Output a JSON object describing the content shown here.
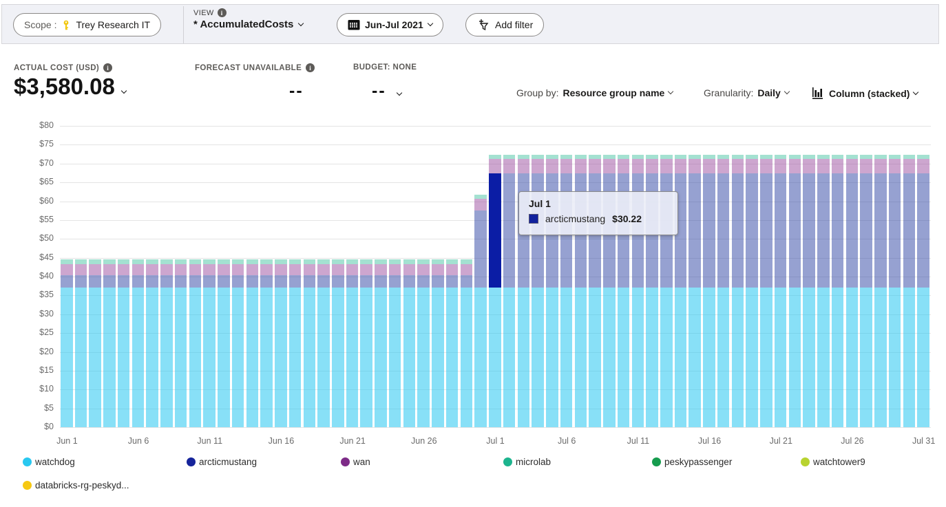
{
  "toolbar": {
    "scope_label": "Scope :",
    "scope_value": "Trey Research IT",
    "view_label": "VIEW",
    "view_value": "* AccumulatedCosts",
    "date_range": "Jun-Jul 2021",
    "add_filter_label": "Add filter"
  },
  "kpis": {
    "actual_cost_label": "ACTUAL COST (USD)",
    "actual_cost_value": "$3,580.08",
    "forecast_label": "FORECAST UNAVAILABLE",
    "forecast_value": "--",
    "budget_label": "BUDGET: NONE",
    "budget_value": "--"
  },
  "controls": {
    "group_by_label": "Group by:",
    "group_by_value": "Resource group name",
    "granularity_label": "Granularity:",
    "granularity_value": "Daily",
    "chart_type_label": "Column (stacked)"
  },
  "tooltip": {
    "title": "Jul 1",
    "series": "arcticmustang",
    "value": "$30.22",
    "swatch_color": "#12229d"
  },
  "legend": [
    {
      "label": "watchdog",
      "color": "#29c8f0"
    },
    {
      "label": "arcticmustang",
      "color": "#16249b"
    },
    {
      "label": "wan",
      "color": "#7d2b87"
    },
    {
      "label": "microlab",
      "color": "#1db48e"
    },
    {
      "label": "peskypassenger",
      "color": "#169c4e"
    },
    {
      "label": "watchtower9",
      "color": "#b8d330"
    },
    {
      "label": "databricks-rg-peskyd...",
      "color": "#f6c812"
    }
  ],
  "chart_data": {
    "type": "bar",
    "stacked": true,
    "title": "Accumulated cost by resource group name, daily",
    "xlabel": "",
    "ylabel": "",
    "ylim": [
      0,
      80
    ],
    "y_tick_step": 5,
    "y_tick_prefix": "$",
    "grid": true,
    "legend_position": "bottom",
    "x_tick_interval": 5,
    "labels": [
      "Jun 1",
      "Jun 2",
      "Jun 3",
      "Jun 4",
      "Jun 5",
      "Jun 6",
      "Jun 7",
      "Jun 8",
      "Jun 9",
      "Jun 10",
      "Jun 11",
      "Jun 12",
      "Jun 13",
      "Jun 14",
      "Jun 15",
      "Jun 16",
      "Jun 17",
      "Jun 18",
      "Jun 19",
      "Jun 20",
      "Jun 21",
      "Jun 22",
      "Jun 23",
      "Jun 24",
      "Jun 25",
      "Jun 26",
      "Jun 27",
      "Jun 28",
      "Jun 29",
      "Jun 30",
      "Jul 1",
      "Jul 2",
      "Jul 3",
      "Jul 4",
      "Jul 5",
      "Jul 6",
      "Jul 7",
      "Jul 8",
      "Jul 9",
      "Jul 10",
      "Jul 11",
      "Jul 12",
      "Jul 13",
      "Jul 14",
      "Jul 15",
      "Jul 16",
      "Jul 17",
      "Jul 18",
      "Jul 19",
      "Jul 20",
      "Jul 21",
      "Jul 22",
      "Jul 23",
      "Jul 24",
      "Jul 25",
      "Jul 26",
      "Jul 27",
      "Jul 28",
      "Jul 29",
      "Jul 30",
      "Jul 31"
    ],
    "series": [
      {
        "name": "watchdog",
        "color": "#29c8f0",
        "faded": "rgba(38,198,241,0.55)",
        "values": [
          37.1,
          37.1,
          37.1,
          37.1,
          37.1,
          37.1,
          37.1,
          37.1,
          37.1,
          37.1,
          37.1,
          37.1,
          37.1,
          37.1,
          37.1,
          37.1,
          37.1,
          37.1,
          37.1,
          37.1,
          37.1,
          37.1,
          37.1,
          37.1,
          37.1,
          37.1,
          37.1,
          37.1,
          37.1,
          37.1,
          37.1,
          37.1,
          37.1,
          37.1,
          37.1,
          37.1,
          37.1,
          37.1,
          37.1,
          37.1,
          37.1,
          37.1,
          37.1,
          37.1,
          37.1,
          37.1,
          37.1,
          37.1,
          37.1,
          37.1,
          37.1,
          37.1,
          37.1,
          37.1,
          37.1,
          37.1,
          37.1,
          37.1,
          37.1,
          37.1,
          37.1
        ]
      },
      {
        "name": "arcticmustang",
        "color": "#16249b",
        "solid": "#0b1da5",
        "faded": "rgba(46,68,164,0.5)",
        "values": [
          3.3,
          3.3,
          3.3,
          3.3,
          3.3,
          3.3,
          3.3,
          3.3,
          3.3,
          3.3,
          3.3,
          3.3,
          3.3,
          3.3,
          3.3,
          3.3,
          3.3,
          3.3,
          3.3,
          3.3,
          3.3,
          3.3,
          3.3,
          3.3,
          3.3,
          3.3,
          3.3,
          3.3,
          3.3,
          20.5,
          30.22,
          30.22,
          30.22,
          30.22,
          30.22,
          30.22,
          30.22,
          30.22,
          30.22,
          30.22,
          30.22,
          30.22,
          30.22,
          30.22,
          30.22,
          30.22,
          30.22,
          30.22,
          30.22,
          30.22,
          30.22,
          30.22,
          30.22,
          30.22,
          30.22,
          30.22,
          30.22,
          30.22,
          30.22,
          30.22,
          30.22
        ]
      },
      {
        "name": "wan",
        "color": "#7d2b87",
        "faded": "rgba(155,77,160,0.5)",
        "values": [
          2.9,
          2.9,
          2.9,
          2.9,
          2.9,
          2.9,
          2.9,
          2.9,
          2.9,
          2.9,
          2.9,
          2.9,
          2.9,
          2.9,
          2.9,
          2.9,
          2.9,
          2.9,
          2.9,
          2.9,
          2.9,
          2.9,
          2.9,
          2.9,
          2.9,
          2.9,
          2.9,
          2.9,
          2.9,
          3.0,
          3.9,
          3.9,
          3.9,
          3.9,
          3.9,
          3.9,
          3.9,
          3.9,
          3.9,
          3.9,
          3.9,
          3.9,
          3.9,
          3.9,
          3.9,
          3.9,
          3.9,
          3.9,
          3.9,
          3.9,
          3.9,
          3.9,
          3.9,
          3.9,
          3.9,
          3.9,
          3.9,
          3.9,
          3.9,
          3.9,
          3.9
        ]
      },
      {
        "name": "microlab",
        "color": "#1db48e",
        "faded": "rgba(73,195,163,0.5)",
        "values": [
          1.2,
          1.2,
          1.2,
          1.2,
          1.2,
          1.2,
          1.2,
          1.2,
          1.2,
          1.2,
          1.2,
          1.2,
          1.2,
          1.2,
          1.2,
          1.2,
          1.2,
          1.2,
          1.2,
          1.2,
          1.2,
          1.2,
          1.2,
          1.2,
          1.2,
          1.2,
          1.2,
          1.2,
          1.2,
          1.2,
          1.2,
          1.2,
          1.2,
          1.2,
          1.2,
          1.2,
          1.2,
          1.2,
          1.2,
          1.2,
          1.2,
          1.2,
          1.2,
          1.2,
          1.2,
          1.2,
          1.2,
          1.2,
          1.2,
          1.2,
          1.2,
          1.2,
          1.2,
          1.2,
          1.2,
          1.2,
          1.2,
          1.2,
          1.2,
          1.2,
          1.2
        ]
      }
    ],
    "highlight": {
      "label": "Jul 1",
      "series": "arcticmustang",
      "value": 30.22
    }
  }
}
